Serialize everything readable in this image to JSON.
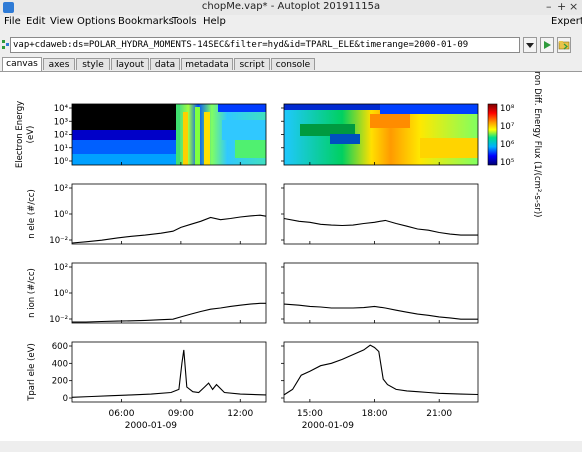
{
  "window": {
    "title": "chopMe.vap* - Autoplot 20191115a",
    "minimize": "–",
    "maximize": "+",
    "close": "×"
  },
  "menu": {
    "items": [
      "File",
      "Edit",
      "View",
      "Options",
      "Bookmarks",
      "Tools",
      "Help"
    ],
    "expert": "Expert"
  },
  "address": {
    "uri": "vap+cdaweb:ds=POLAR_HYDRA_MOMENTS-14SEC&filter=hyd&id=TPARL_ELE&timerange=2000-01-09"
  },
  "tabs": [
    "canvas",
    "axes",
    "style",
    "layout",
    "data",
    "metadata",
    "script",
    "console"
  ],
  "active_tab": "canvas",
  "colors": {
    "trace": "#000000",
    "accent": "#2f7bd6",
    "go_button": "#2e9a3c"
  },
  "chart_data": [
    {
      "type": "heatmap",
      "ylabel_lines": [
        "Electron Energy",
        "(eV)"
      ],
      "y_scale": "log",
      "y_ticks": [
        "10⁴",
        "10³",
        "10²",
        "10¹",
        "10⁰"
      ],
      "colorbar": {
        "label_lines": [
          "Electron Diff.",
          "Energy Flux",
          "(1/(cm²-s-sr))"
        ],
        "scale": "log",
        "ticks": [
          "10⁸",
          "10⁷",
          "10⁶",
          "10⁵"
        ],
        "colors": [
          "#7a0000",
          "#ff0000",
          "#ff9900",
          "#ffff00",
          "#00e08a",
          "#00b0ff",
          "#0000ff",
          "#000070"
        ]
      }
    },
    {
      "type": "line",
      "ylabel": "n ele (#/cc)",
      "y_scale": "log",
      "y_ticks": [
        "10²",
        "10⁰",
        "10⁻²"
      ],
      "ylim": [
        0.01,
        500
      ],
      "left_x": [
        3.5,
        4.2,
        5.0,
        5.8,
        6.5,
        7.2,
        8.0,
        8.6,
        9.0,
        9.5,
        10.0,
        10.5,
        11.0,
        11.5,
        12.0,
        12.5,
        13.0,
        13.3
      ],
      "left_y": [
        0.012,
        0.015,
        0.02,
        0.03,
        0.04,
        0.05,
        0.07,
        0.1,
        0.2,
        0.35,
        0.6,
        1.2,
        0.8,
        1.0,
        1.3,
        1.6,
        1.8,
        1.5
      ],
      "right_x": [
        13.8,
        14.5,
        15.0,
        15.5,
        16.0,
        16.5,
        17.0,
        17.5,
        18.0,
        18.5,
        19.0,
        19.5,
        20.0,
        20.5,
        21.0,
        21.5,
        22.0,
        22.8
      ],
      "right_y": [
        1.0,
        0.6,
        0.5,
        0.35,
        0.3,
        0.28,
        0.3,
        0.4,
        0.5,
        0.7,
        0.4,
        0.25,
        0.15,
        0.12,
        0.08,
        0.06,
        0.05,
        0.05
      ]
    },
    {
      "type": "line",
      "ylabel": "n ion (#/cc)",
      "y_scale": "log",
      "y_ticks": [
        "10²",
        "10⁰",
        "10⁻²"
      ],
      "ylim": [
        0.01,
        500
      ],
      "left_x": [
        3.5,
        4.2,
        5.0,
        5.8,
        6.5,
        7.2,
        8.0,
        8.6,
        9.0,
        9.5,
        10.0,
        10.5,
        11.0,
        11.5,
        12.0,
        12.5,
        13.0,
        13.3
      ],
      "left_y": [
        0.012,
        0.012,
        0.013,
        0.014,
        0.015,
        0.016,
        0.018,
        0.02,
        0.03,
        0.05,
        0.08,
        0.12,
        0.15,
        0.2,
        0.25,
        0.3,
        0.35,
        0.35
      ],
      "right_x": [
        13.8,
        14.5,
        15.0,
        15.5,
        16.0,
        16.5,
        17.0,
        17.5,
        18.0,
        18.5,
        19.0,
        19.5,
        20.0,
        20.5,
        21.0,
        21.5,
        22.0,
        22.8
      ],
      "right_y": [
        0.3,
        0.25,
        0.2,
        0.18,
        0.15,
        0.15,
        0.15,
        0.16,
        0.2,
        0.15,
        0.1,
        0.07,
        0.05,
        0.04,
        0.03,
        0.025,
        0.02,
        0.02
      ]
    },
    {
      "type": "line",
      "ylabel": "Tparl ele (eV)",
      "y_scale": "linear",
      "y_ticks": [
        "600",
        "400",
        "200",
        "0"
      ],
      "ylim": [
        -40,
        720
      ],
      "left_x": [
        3.5,
        4.5,
        5.5,
        6.5,
        7.5,
        8.5,
        8.9,
        9.05,
        9.15,
        9.3,
        9.6,
        9.9,
        10.2,
        10.4,
        10.6,
        10.8,
        11.2,
        12.0,
        13.3
      ],
      "left_y": [
        20,
        30,
        40,
        50,
        60,
        80,
        120,
        450,
        620,
        150,
        90,
        80,
        150,
        200,
        120,
        180,
        80,
        60,
        50
      ],
      "right_x": [
        13.8,
        14.2,
        14.6,
        15.0,
        15.5,
        16.0,
        16.5,
        17.0,
        17.5,
        17.8,
        18.0,
        18.2,
        18.4,
        18.6,
        19.0,
        19.5,
        20.0,
        20.5,
        21.0,
        22.0,
        22.8
      ],
      "right_y": [
        50,
        120,
        300,
        350,
        420,
        450,
        500,
        560,
        620,
        680,
        650,
        600,
        250,
        180,
        120,
        100,
        90,
        80,
        70,
        60,
        55
      ]
    }
  ],
  "x_axis": {
    "left_ticks": [
      "06:00",
      "09:00",
      "12:00"
    ],
    "left_range": [
      3.5,
      13.3
    ],
    "right_ticks": [
      "15:00",
      "18:00",
      "21:00"
    ],
    "right_range": [
      13.8,
      22.8
    ],
    "date_label": "2000-01-09"
  }
}
